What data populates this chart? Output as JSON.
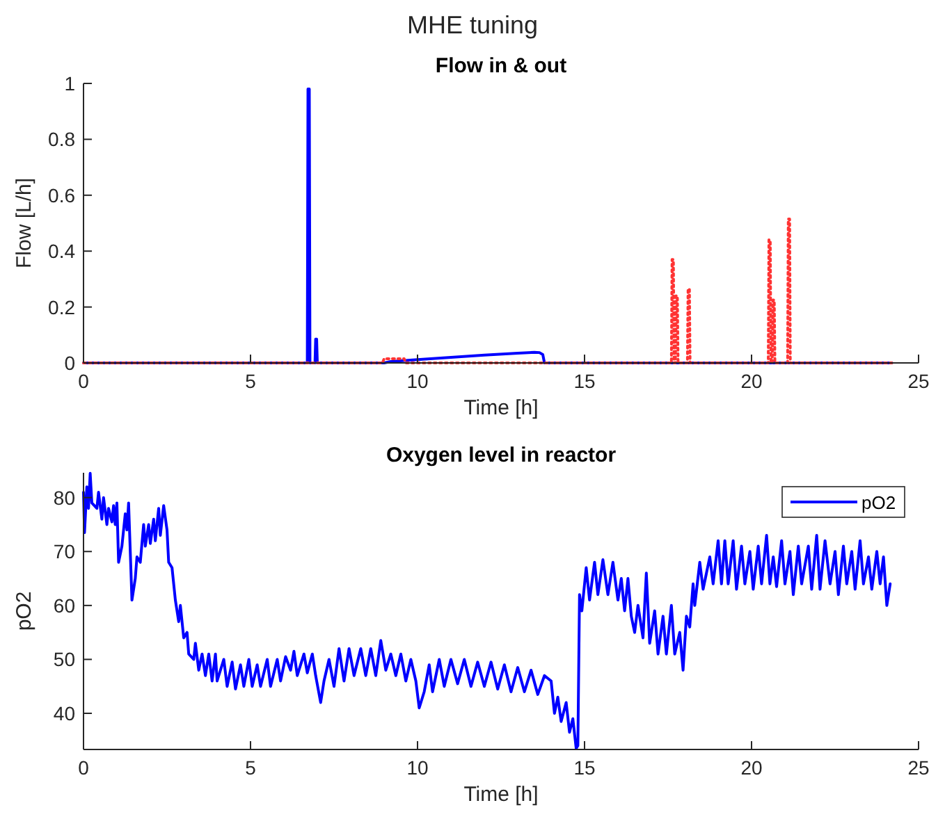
{
  "chart_data": [
    {
      "type": "line",
      "title": "MHE tuning",
      "subtitle": "Flow in & out",
      "xlabel": "Time [h]",
      "ylabel": "Flow [L/h]",
      "xlim": [
        0,
        25
      ],
      "xticks": [
        0,
        5,
        10,
        15,
        20,
        25
      ],
      "ylim": [
        0,
        1
      ],
      "yticks": [
        0,
        0.2,
        0.4,
        0.6,
        0.8,
        1
      ],
      "grid": false,
      "legend": false,
      "series": [
        {
          "color": "#0000ff",
          "line_style": "solid",
          "x": [
            0,
            6.7,
            6.72,
            6.76,
            6.78,
            6.93,
            6.95,
            6.98,
            7.0,
            9.0,
            9.2,
            10.0,
            11.0,
            12.0,
            13.0,
            13.5,
            13.65,
            13.75,
            13.8,
            24.2
          ],
          "values": [
            0,
            0,
            0.98,
            0.98,
            0,
            0,
            0.085,
            0.085,
            0,
            0,
            0.005,
            0.012,
            0.02,
            0.028,
            0.035,
            0.038,
            0.037,
            0.03,
            0,
            0
          ]
        },
        {
          "color": "#ff3333",
          "line_style": "dotted",
          "x": [
            0,
            8.95,
            9.0,
            9.6,
            9.65,
            17.6,
            17.62,
            17.66,
            17.68,
            17.72,
            17.74,
            17.78,
            17.8,
            18.08,
            18.1,
            18.14,
            18.16,
            20.5,
            20.52,
            20.56,
            20.58,
            20.62,
            20.64,
            20.68,
            20.7,
            21.08,
            21.1,
            21.14,
            21.16,
            24.2
          ],
          "values": [
            0,
            0,
            0.015,
            0.015,
            0,
            0,
            0.37,
            0.37,
            0,
            0,
            0.24,
            0.24,
            0,
            0,
            0.265,
            0.265,
            0,
            0,
            0.44,
            0.44,
            0,
            0,
            0.225,
            0.225,
            0,
            0,
            0.515,
            0.515,
            0,
            0
          ]
        }
      ]
    },
    {
      "type": "line",
      "title": "Oxygen level in reactor",
      "xlabel": "Time [h]",
      "ylabel": "pO2",
      "xlim": [
        0,
        25
      ],
      "xticks": [
        0,
        5,
        10,
        15,
        20,
        25
      ],
      "ylim": [
        33.3,
        84.6
      ],
      "yticks": [
        40,
        50,
        60,
        70,
        80
      ],
      "grid": false,
      "legend": "top right",
      "series": [
        {
          "name": "pO2",
          "color": "#0000ff",
          "line_style": "solid",
          "x": [
            0,
            0.03,
            0.1,
            0.15,
            0.2,
            0.25,
            0.4,
            0.45,
            0.55,
            0.6,
            0.7,
            0.75,
            0.85,
            0.9,
            0.95,
            1.0,
            1.05,
            1.15,
            1.25,
            1.3,
            1.35,
            1.45,
            1.55,
            1.6,
            1.7,
            1.8,
            1.85,
            1.95,
            2.0,
            2.1,
            2.15,
            2.25,
            2.3,
            2.4,
            2.5,
            2.55,
            2.65,
            2.75,
            2.85,
            2.9,
            3.0,
            3.1,
            3.15,
            3.3,
            3.35,
            3.45,
            3.55,
            3.65,
            3.75,
            3.85,
            3.95,
            4.0,
            4.2,
            4.3,
            4.45,
            4.55,
            4.7,
            4.8,
            4.95,
            5.05,
            5.2,
            5.3,
            5.5,
            5.6,
            5.8,
            5.9,
            6.05,
            6.2,
            6.3,
            6.4,
            6.6,
            6.7,
            6.85,
            6.95,
            7.1,
            7.2,
            7.35,
            7.5,
            7.65,
            7.8,
            7.95,
            8.1,
            8.3,
            8.45,
            8.6,
            8.75,
            8.9,
            9.05,
            9.2,
            9.35,
            9.5,
            9.65,
            9.8,
            9.95,
            10.05,
            10.2,
            10.35,
            10.45,
            10.65,
            10.8,
            11.0,
            11.2,
            11.4,
            11.6,
            11.8,
            12.0,
            12.2,
            12.4,
            12.6,
            12.8,
            13.0,
            13.2,
            13.4,
            13.6,
            13.8,
            14.0,
            14.1,
            14.2,
            14.3,
            14.45,
            14.55,
            14.65,
            14.75,
            14.8,
            14.85,
            14.92,
            15.05,
            15.15,
            15.3,
            15.4,
            15.55,
            15.7,
            15.85,
            16.0,
            16.1,
            16.2,
            16.3,
            16.4,
            16.5,
            16.6,
            16.75,
            16.85,
            16.95,
            17.1,
            17.2,
            17.35,
            17.45,
            17.6,
            17.7,
            17.85,
            17.95,
            18.05,
            18.15,
            18.25,
            18.3,
            18.45,
            18.55,
            18.75,
            18.85,
            19.0,
            19.1,
            19.2,
            19.3,
            19.45,
            19.55,
            19.7,
            19.8,
            19.95,
            20.05,
            20.2,
            20.3,
            20.45,
            20.55,
            20.65,
            20.75,
            20.9,
            21.0,
            21.15,
            21.25,
            21.4,
            21.5,
            21.7,
            21.8,
            21.95,
            22.05,
            22.2,
            22.35,
            22.5,
            22.6,
            22.75,
            22.85,
            23.0,
            23.1,
            23.25,
            23.35,
            23.5,
            23.6,
            23.75,
            23.85,
            23.95,
            24.05,
            24.15
          ],
          "values": [
            81,
            73.5,
            82,
            78,
            84.5,
            79,
            78,
            81,
            76,
            80,
            75,
            78,
            75.5,
            78.5,
            75,
            79,
            68,
            71,
            77,
            74,
            79,
            61,
            65,
            69,
            68,
            75,
            71,
            75,
            71.5,
            76,
            72,
            78,
            73,
            78.5,
            74,
            68,
            67,
            61,
            57,
            60,
            54,
            55,
            51,
            50,
            53,
            48,
            51,
            47,
            51,
            46,
            51,
            46,
            50,
            45,
            49.5,
            44.5,
            49,
            45,
            50,
            45,
            49,
            45,
            50,
            45,
            50,
            46,
            50.5,
            48,
            51.5,
            47,
            51,
            47.5,
            51,
            47,
            42,
            46,
            50,
            45,
            52,
            46,
            52,
            47,
            52,
            47,
            52,
            47,
            53.5,
            48,
            51,
            47,
            51,
            46,
            50,
            46,
            41,
            44,
            49,
            44,
            50,
            45,
            50,
            45.5,
            50,
            45,
            49.5,
            45,
            49.5,
            44.5,
            49,
            44,
            48.5,
            44,
            48,
            43.5,
            47,
            46,
            40,
            43,
            38.5,
            42,
            36.5,
            39,
            33.5,
            34,
            62,
            59,
            67,
            61,
            68,
            62,
            68.5,
            62,
            68,
            61,
            65,
            59,
            65,
            58,
            55,
            60,
            54,
            66,
            53,
            59,
            51,
            58,
            51,
            60,
            51,
            55,
            48,
            58,
            56,
            64,
            60,
            68,
            63,
            69,
            64,
            72,
            64,
            72,
            64,
            72,
            63,
            71,
            64,
            70,
            63,
            71,
            64,
            73,
            64,
            69,
            63.5,
            72,
            64,
            70,
            62,
            71,
            64,
            71,
            63,
            73,
            63,
            72,
            64,
            70,
            62,
            71,
            64,
            70,
            63,
            72,
            64,
            69,
            63,
            70,
            64,
            69,
            60,
            64
          ]
        }
      ]
    }
  ]
}
